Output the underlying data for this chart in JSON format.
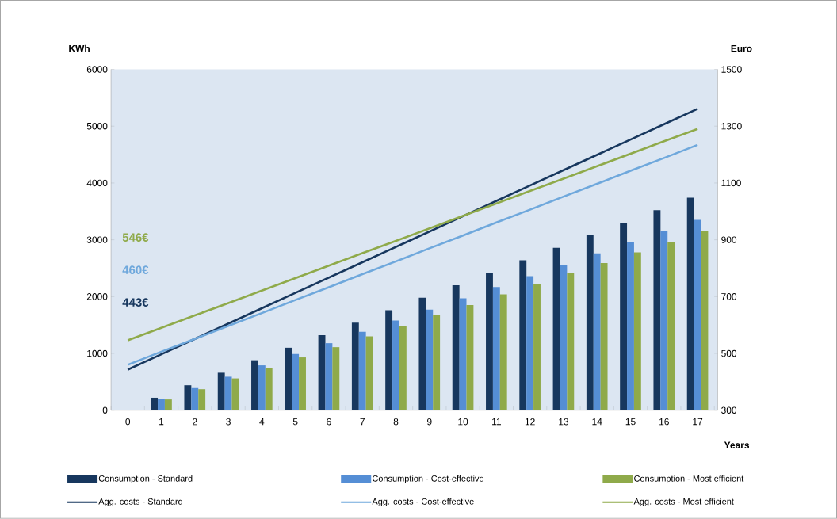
{
  "chart_data": {
    "type": "bar",
    "ylabel": "KWh",
    "y2label": "Euro",
    "xlabel": "Years",
    "categories": [
      "0",
      "1",
      "2",
      "3",
      "4",
      "5",
      "6",
      "7",
      "8",
      "9",
      "10",
      "11",
      "12",
      "13",
      "14",
      "15",
      "16",
      "17"
    ],
    "ylim": [
      0,
      6000
    ],
    "yticks": [
      0,
      1000,
      2000,
      3000,
      4000,
      5000,
      6000
    ],
    "y2lim": [
      300,
      1500
    ],
    "y2ticks": [
      300,
      500,
      700,
      900,
      1100,
      1300,
      1500
    ],
    "legend": "bottom",
    "annotations": [
      "546€",
      "460€",
      "443€"
    ],
    "series": [
      {
        "name": "Consumption - Standard",
        "color": "#17375e",
        "values": [
          null,
          220,
          440,
          660,
          880,
          1100,
          1320,
          1540,
          1760,
          1980,
          2200,
          2420,
          2640,
          2860,
          3080,
          3300,
          3520,
          3740
        ]
      },
      {
        "name": "Consumption - Cost-effective",
        "color": "#558ed5",
        "values": [
          null,
          200,
          390,
          590,
          790,
          990,
          1180,
          1380,
          1580,
          1770,
          1970,
          2170,
          2360,
          2560,
          2760,
          2960,
          3150,
          3350
        ]
      },
      {
        "name": "Consumption - Most efficient",
        "color": "#8faa4a",
        "values": [
          null,
          190,
          370,
          560,
          740,
          930,
          1110,
          1300,
          1480,
          1670,
          1850,
          2040,
          2220,
          2410,
          2590,
          2780,
          2960,
          3150
        ]
      },
      {
        "name": "Agg. costs - Standard",
        "type": "line",
        "axis": "y2",
        "color": "#17375e",
        "values": [
          443,
          497,
          551,
          605,
          659,
          713,
          767,
          821,
          875,
          929,
          983,
          1037,
          1091,
          1145,
          1199,
          1253,
          1307,
          1361
        ]
      },
      {
        "name": "Agg. costs - Cost-effective",
        "type": "line",
        "axis": "y2",
        "color": "#6fa8dc",
        "values": [
          460,
          506,
          551,
          597,
          642,
          688,
          733,
          779,
          824,
          870,
          915,
          961,
          1006,
          1052,
          1097,
          1143,
          1188,
          1234
        ]
      },
      {
        "name": "Agg. costs - Most efficient",
        "type": "line",
        "axis": "y2",
        "color": "#8faa4a",
        "values": [
          546,
          590,
          634,
          677,
          721,
          765,
          809,
          853,
          896,
          940,
          984,
          1028,
          1072,
          1115,
          1159,
          1203,
          1247,
          1290
        ]
      }
    ]
  }
}
